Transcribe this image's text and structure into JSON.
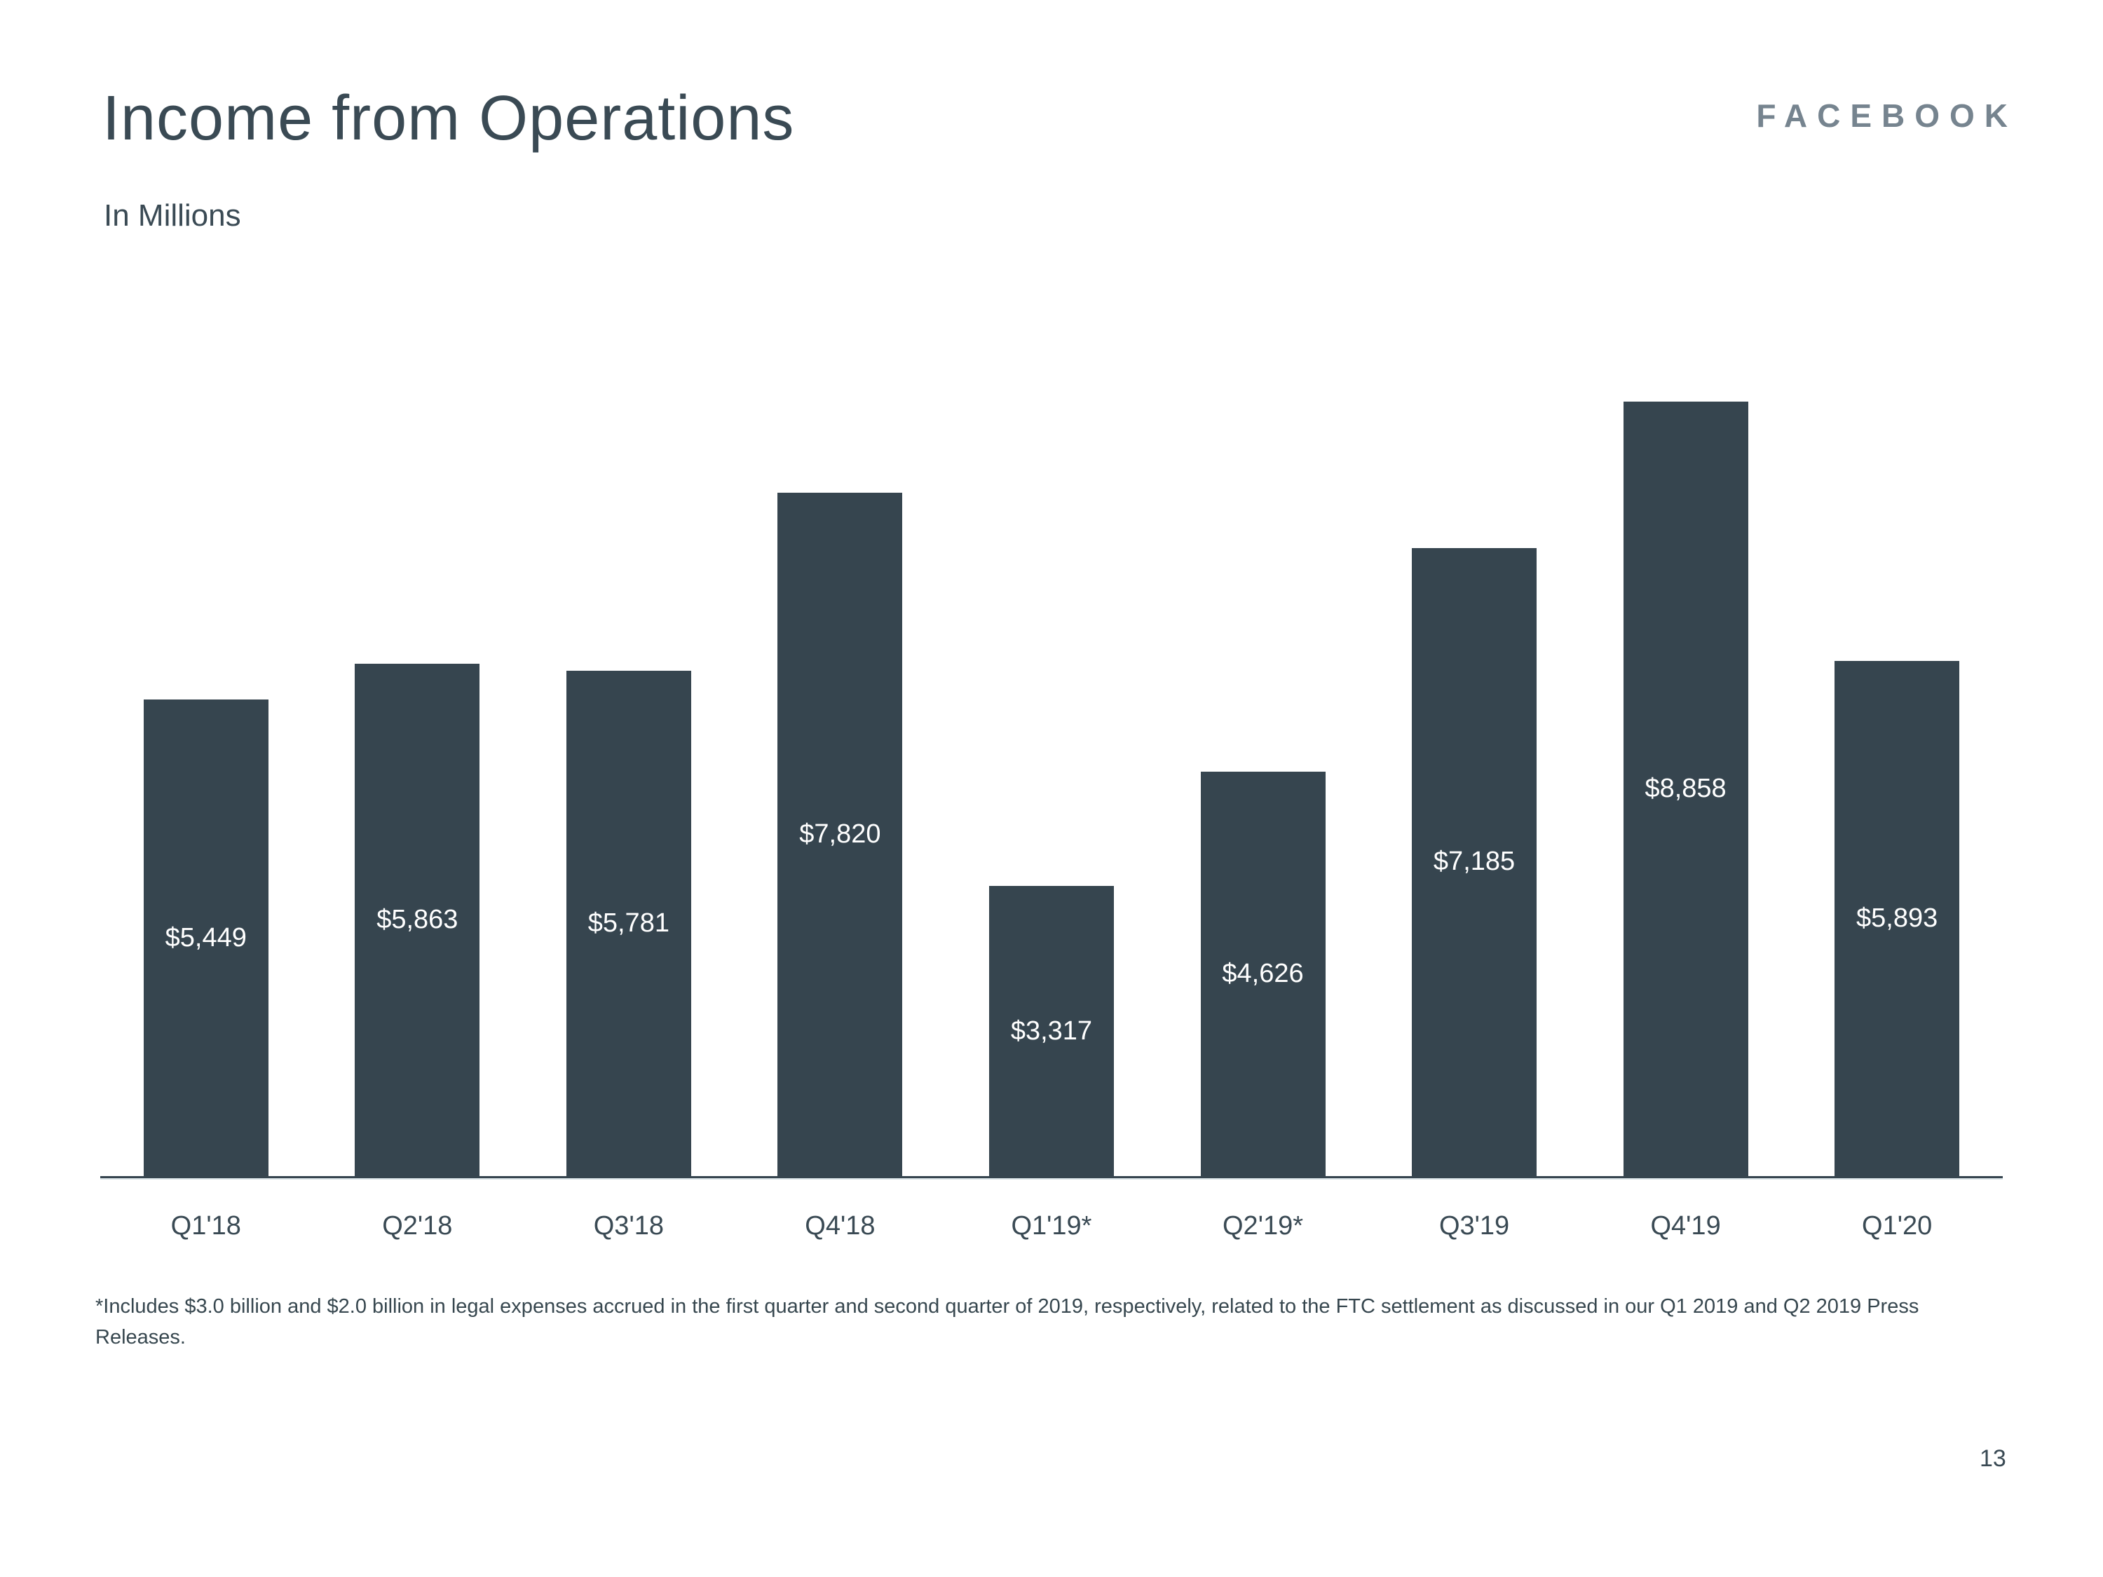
{
  "slide": {
    "title": "Income from Operations",
    "subtitle": "In Millions",
    "logo": "FACEBOOK",
    "footnote": "*Includes $3.0 billion and $2.0 billion in legal expenses accrued in the first quarter and second quarter of 2019, respectively, related to the FTC settlement as discussed in our Q1 2019 and Q2 2019 Press Releases.",
    "page_number": "13"
  },
  "colors": {
    "background": "#ffffff",
    "bar": "#36454f",
    "bar_label": "#ffffff",
    "text": "#3a4a54",
    "logo": "#76848f",
    "axis": "#36454f"
  },
  "chart_data": {
    "type": "bar",
    "title": "Income from Operations",
    "units": "In Millions",
    "categories": [
      "Q1'18",
      "Q2'18",
      "Q3'18",
      "Q4'18",
      "Q1'19*",
      "Q2'19*",
      "Q3'19",
      "Q4'19",
      "Q1'20"
    ],
    "values": [
      5449,
      5863,
      5781,
      7820,
      3317,
      4626,
      7185,
      8858,
      5893
    ],
    "value_labels": [
      "$5,449",
      "$5,863",
      "$5,781",
      "$7,820",
      "$3,317",
      "$4,626",
      "$7,185",
      "$8,858",
      "$5,893"
    ],
    "ylim": [
      0,
      8858
    ],
    "grid": false,
    "legend": false,
    "label_position": "center-inside",
    "bar_color": "#36454f"
  }
}
